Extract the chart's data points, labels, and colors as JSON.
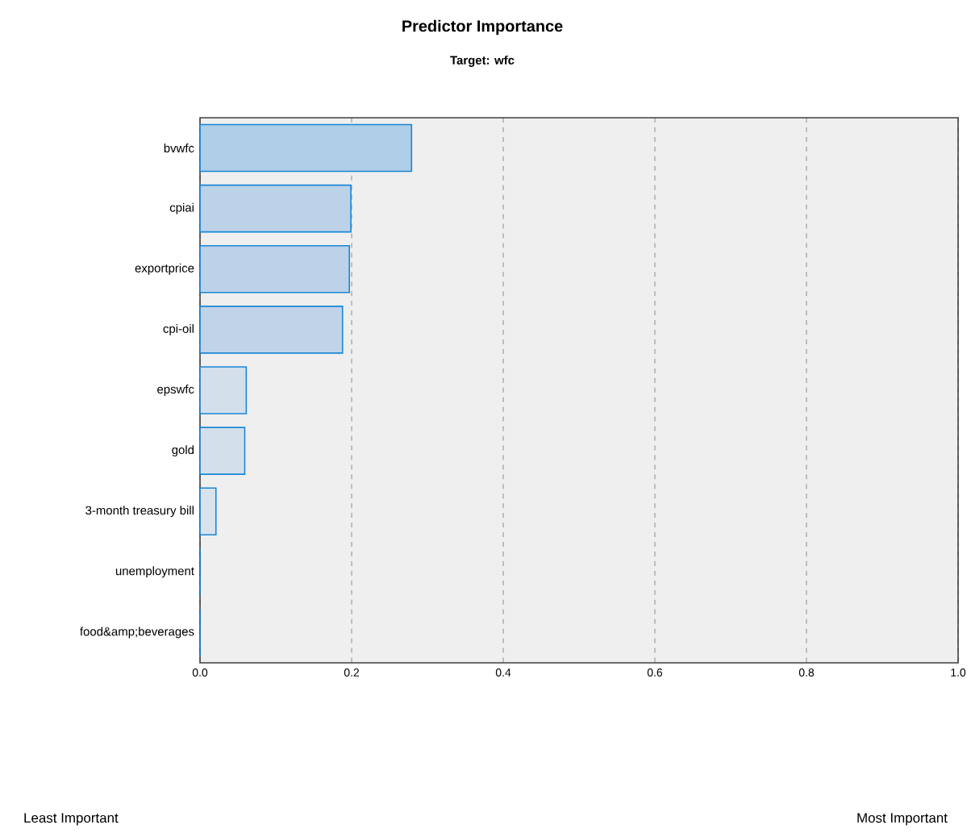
{
  "chart_data": {
    "type": "bar",
    "orientation": "horizontal",
    "title": "Predictor Importance",
    "subtitle": "Target: wfc",
    "categories": [
      "bvwfc",
      "cpiai",
      "exportprice",
      "cpi-oil",
      "epswfc",
      "gold",
      "3-month treasury bill",
      "unemployment",
      "food&amp;beverages"
    ],
    "values": [
      0.279,
      0.199,
      0.197,
      0.188,
      0.061,
      0.059,
      0.021,
      0,
      0
    ],
    "colors": [
      "#afcfe8",
      "#bcd2e8",
      "#bcd2e8",
      "#c0d3e8",
      "#d3e0ec",
      "#d3e0ec",
      "#d8e3ec",
      "#d8e3ec",
      "#d8e3ec"
    ],
    "xlim": [
      0,
      1
    ],
    "xticks": [
      {
        "value": 0,
        "label": "0.0"
      },
      {
        "value": 0.2,
        "label": "0.2"
      },
      {
        "value": 0.4,
        "label": "0.4"
      },
      {
        "value": 0.6,
        "label": "0.6"
      },
      {
        "value": 0.8,
        "label": "0.8"
      },
      {
        "value": 1,
        "label": "1.0"
      }
    ],
    "grid": "x",
    "annotations": [
      "Least Important",
      "Most Important"
    ]
  }
}
